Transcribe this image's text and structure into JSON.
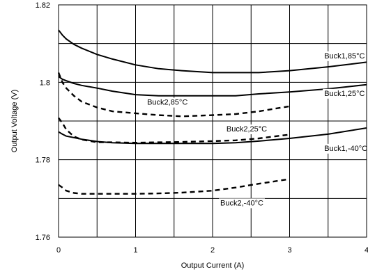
{
  "chart_data": {
    "type": "line",
    "xlabel": "Output Current (A)",
    "ylabel": "Output Voltage (V)",
    "xlim": [
      0,
      4
    ],
    "ylim": [
      1.76,
      1.82
    ],
    "xticks": [
      "0",
      "1",
      "2",
      "3",
      "4"
    ],
    "yticks": [
      "1.76",
      "1.78",
      "1.8",
      "1.82"
    ],
    "grid": true,
    "series": [
      {
        "name": "Buck1,85°C",
        "style": "solid",
        "x": [
          0,
          0.05,
          0.1,
          0.2,
          0.3,
          0.5,
          0.7,
          1.0,
          1.3,
          1.6,
          2.0,
          2.3,
          2.6,
          3.0,
          3.5,
          4.0
        ],
        "y": [
          1.8135,
          1.8122,
          1.8112,
          1.8098,
          1.8088,
          1.8072,
          1.806,
          1.8045,
          1.8035,
          1.803,
          1.8025,
          1.8025,
          1.8025,
          1.803,
          1.804,
          1.8052
        ]
      },
      {
        "name": "Buck1,25°C",
        "style": "solid",
        "x": [
          0,
          0.05,
          0.1,
          0.2,
          0.3,
          0.5,
          0.7,
          1.0,
          1.3,
          1.6,
          2.0,
          2.3,
          2.6,
          3.0,
          3.5,
          4.0
        ],
        "y": [
          1.8015,
          1.8008,
          1.8004,
          1.7997,
          1.7992,
          1.7985,
          1.7977,
          1.7968,
          1.7965,
          1.7965,
          1.7965,
          1.7965,
          1.797,
          1.7975,
          1.7983,
          1.7994
        ]
      },
      {
        "name": "Buck1,-40°C",
        "style": "solid",
        "x": [
          0,
          0.05,
          0.1,
          0.2,
          0.3,
          0.5,
          0.7,
          1.0,
          1.3,
          1.6,
          2.0,
          2.3,
          2.6,
          3.0,
          3.5,
          4.0
        ],
        "y": [
          1.7872,
          1.7866,
          1.7861,
          1.7857,
          1.7853,
          1.7847,
          1.7844,
          1.7842,
          1.7842,
          1.7842,
          1.7842,
          1.7844,
          1.7848,
          1.7855,
          1.7866,
          1.7882
        ]
      },
      {
        "name": "Buck2,85°C",
        "style": "dashed",
        "x": [
          0,
          0.05,
          0.1,
          0.2,
          0.3,
          0.5,
          0.7,
          1.0,
          1.3,
          1.6,
          2.0,
          2.3,
          2.6,
          3.0
        ],
        "y": [
          1.8025,
          1.8,
          1.7985,
          1.7965,
          1.795,
          1.7935,
          1.7925,
          1.792,
          1.7915,
          1.7912,
          1.7915,
          1.7918,
          1.7925,
          1.7938
        ]
      },
      {
        "name": "Buck2,25°C",
        "style": "dashed",
        "x": [
          0,
          0.05,
          0.1,
          0.2,
          0.3,
          0.5,
          0.7,
          1.0,
          1.3,
          1.6,
          2.0,
          2.3,
          2.6,
          3.0
        ],
        "y": [
          1.7908,
          1.7895,
          1.7878,
          1.786,
          1.7852,
          1.7845,
          1.7845,
          1.7844,
          1.7845,
          1.7846,
          1.7848,
          1.785,
          1.7855,
          1.7865
        ]
      },
      {
        "name": "Buck2,-40°C",
        "style": "dashed",
        "x": [
          0,
          0.05,
          0.1,
          0.2,
          0.3,
          0.5,
          0.7,
          1.0,
          1.3,
          1.6,
          2.0,
          2.3,
          2.6,
          3.0
        ],
        "y": [
          1.7735,
          1.7728,
          1.772,
          1.7714,
          1.7712,
          1.7712,
          1.7712,
          1.7712,
          1.7713,
          1.7715,
          1.772,
          1.7728,
          1.7738,
          1.775
        ]
      }
    ]
  }
}
